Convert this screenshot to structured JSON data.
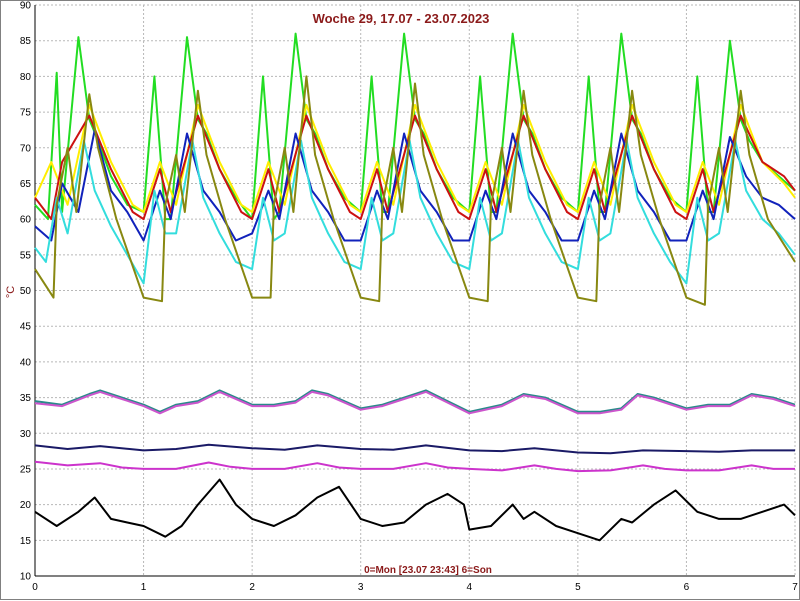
{
  "chart_data": {
    "type": "line",
    "title": "Woche 29, 17.07 - 23.07.2023",
    "xlabel": "0=Mon [23.07 23:43] 6=Son",
    "ylabel": "°C",
    "xlim": [
      0,
      7
    ],
    "ylim": [
      10,
      90
    ],
    "xticks": [
      0,
      1,
      2,
      3,
      4,
      5,
      6,
      7
    ],
    "yticks": [
      10,
      15,
      20,
      25,
      30,
      35,
      40,
      45,
      50,
      55,
      60,
      65,
      70,
      75,
      80,
      85,
      90
    ],
    "grid": true,
    "legend": "none",
    "series": [
      {
        "color": "#22dd22",
        "x": [
          0,
          0.12,
          0.2,
          0.25,
          0.4,
          0.5,
          0.58,
          0.7,
          0.85,
          1.0,
          1.1,
          1.2,
          1.25,
          1.4,
          1.5,
          1.58,
          1.7,
          1.85,
          2.0,
          2.1,
          2.2,
          2.25,
          2.4,
          2.5,
          2.58,
          2.7,
          2.85,
          3.0,
          3.1,
          3.2,
          3.25,
          3.4,
          3.5,
          3.58,
          3.7,
          3.85,
          4.0,
          4.1,
          4.2,
          4.25,
          4.4,
          4.5,
          4.58,
          4.7,
          4.85,
          5.0,
          5.1,
          5.2,
          5.25,
          5.4,
          5.5,
          5.58,
          5.7,
          5.85,
          6.0,
          6.1,
          6.2,
          6.25,
          6.4,
          6.5,
          6.58,
          6.7,
          6.85,
          7.0
        ],
        "y": [
          62,
          60,
          80.5,
          61,
          85.5,
          74,
          71,
          66,
          62,
          61,
          80,
          60,
          60,
          85.5,
          74,
          72,
          67,
          63,
          60,
          80,
          60,
          61,
          86,
          74,
          72,
          67,
          63,
          61,
          80,
          61,
          61,
          86,
          74,
          72,
          67,
          63,
          61,
          80,
          61,
          61,
          86,
          74,
          72,
          67,
          63,
          61,
          80,
          61,
          61,
          86,
          74,
          72,
          67,
          63,
          61,
          80,
          61,
          61,
          85,
          74,
          71,
          68,
          66,
          64
        ]
      },
      {
        "color": "#ffee00",
        "x": [
          0,
          0.15,
          0.3,
          0.5,
          0.7,
          0.9,
          1.0,
          1.15,
          1.3,
          1.5,
          1.7,
          1.9,
          2.0,
          2.15,
          2.3,
          2.5,
          2.7,
          2.9,
          3.0,
          3.15,
          3.3,
          3.5,
          3.7,
          3.9,
          4.0,
          4.15,
          4.3,
          4.5,
          4.7,
          4.9,
          5.0,
          5.15,
          5.3,
          5.5,
          5.7,
          5.9,
          6.0,
          6.15,
          6.3,
          6.5,
          6.7,
          6.9,
          7.0
        ],
        "y": [
          63,
          68,
          62,
          76,
          68,
          62,
          61,
          68,
          62,
          76,
          68,
          62,
          61,
          68,
          62,
          76,
          68,
          62,
          61,
          68,
          62,
          76,
          68,
          62,
          61,
          68,
          62,
          76,
          68,
          62,
          61,
          68,
          62,
          76,
          68,
          62,
          61,
          68,
          62,
          76,
          68,
          65,
          63
        ]
      },
      {
        "color": "#cc1111",
        "x": [
          0,
          0.15,
          0.25,
          0.5,
          0.7,
          0.9,
          1.0,
          1.15,
          1.25,
          1.5,
          1.7,
          1.9,
          2.0,
          2.15,
          2.25,
          2.5,
          2.7,
          2.9,
          3.0,
          3.15,
          3.25,
          3.5,
          3.7,
          3.9,
          4.0,
          4.15,
          4.25,
          4.5,
          4.7,
          4.9,
          5.0,
          5.15,
          5.25,
          5.5,
          5.7,
          5.9,
          6.0,
          6.15,
          6.25,
          6.5,
          6.7,
          6.9,
          7.0
        ],
        "y": [
          63,
          60,
          68,
          74.5,
          67,
          61,
          60,
          67,
          61,
          74.5,
          67,
          61,
          60,
          67,
          61,
          74.5,
          67,
          61,
          60,
          67,
          61,
          74.5,
          67,
          61,
          60,
          67,
          61,
          74.5,
          67,
          61,
          60,
          67,
          61,
          74.5,
          67,
          61,
          60,
          67,
          61,
          74.5,
          68,
          66,
          64
        ]
      },
      {
        "color": "#1122bb",
        "x": [
          0,
          0.15,
          0.25,
          0.4,
          0.55,
          0.7,
          0.85,
          1.0,
          1.15,
          1.25,
          1.4,
          1.55,
          1.7,
          1.85,
          2.0,
          2.15,
          2.25,
          2.4,
          2.55,
          2.7,
          2.85,
          3.0,
          3.15,
          3.25,
          3.4,
          3.55,
          3.7,
          3.85,
          4.0,
          4.15,
          4.25,
          4.4,
          4.55,
          4.7,
          4.85,
          5.0,
          5.15,
          5.25,
          5.4,
          5.55,
          5.7,
          5.85,
          6.0,
          6.15,
          6.25,
          6.4,
          6.55,
          6.7,
          6.85,
          7.0
        ],
        "y": [
          59,
          57,
          65,
          61,
          72.5,
          64,
          61,
          57,
          64,
          60,
          72,
          64,
          61,
          57,
          58,
          64,
          60,
          72,
          64,
          61,
          57,
          57,
          64,
          60,
          72,
          64,
          61,
          57,
          57,
          64,
          60,
          72,
          64,
          61,
          57,
          57,
          64,
          60,
          72,
          64,
          61,
          57,
          57,
          64,
          60,
          71.5,
          66,
          63,
          62,
          60
        ]
      },
      {
        "color": "#33dddd",
        "x": [
          0,
          0.1,
          0.2,
          0.3,
          0.45,
          0.55,
          0.7,
          0.85,
          1.0,
          1.1,
          1.2,
          1.3,
          1.45,
          1.55,
          1.7,
          1.85,
          2.0,
          2.1,
          2.2,
          2.3,
          2.45,
          2.55,
          2.7,
          2.85,
          3.0,
          3.1,
          3.2,
          3.3,
          3.45,
          3.55,
          3.7,
          3.85,
          4.0,
          4.1,
          4.2,
          4.3,
          4.45,
          4.55,
          4.7,
          4.85,
          5.0,
          5.1,
          5.2,
          5.3,
          5.45,
          5.55,
          5.7,
          5.85,
          6.0,
          6.1,
          6.2,
          6.3,
          6.45,
          6.55,
          6.7,
          6.85,
          7.0
        ],
        "y": [
          56,
          54,
          63,
          58,
          71,
          64,
          59,
          55,
          51,
          64,
          58,
          58,
          71,
          63,
          58,
          54,
          53,
          63,
          57,
          58,
          71,
          63,
          58,
          54,
          53,
          63,
          57,
          58,
          71,
          63,
          58,
          54,
          53,
          63,
          57,
          58,
          71,
          63,
          58,
          54,
          53,
          63,
          57,
          58,
          71,
          63,
          58,
          54,
          51,
          63,
          57,
          58,
          71,
          64,
          60,
          58,
          55
        ]
      },
      {
        "color": "#888811",
        "x": [
          0,
          0.17,
          0.2,
          0.3,
          0.38,
          0.5,
          0.58,
          0.75,
          1.0,
          1.17,
          1.2,
          1.3,
          1.38,
          1.5,
          1.58,
          1.75,
          2.0,
          2.17,
          2.2,
          2.3,
          2.38,
          2.5,
          2.58,
          2.75,
          3.0,
          3.17,
          3.2,
          3.3,
          3.38,
          3.5,
          3.58,
          3.75,
          4.0,
          4.17,
          4.2,
          4.3,
          4.38,
          4.5,
          4.58,
          4.75,
          5.0,
          5.17,
          5.2,
          5.3,
          5.38,
          5.5,
          5.58,
          5.75,
          6.0,
          6.17,
          6.2,
          6.3,
          6.38,
          6.5,
          6.58,
          6.75,
          7.0
        ],
        "y": [
          53,
          49,
          62,
          70,
          61,
          77.5,
          70,
          60,
          49,
          48.5,
          62,
          69,
          61,
          78,
          69,
          60,
          49,
          49,
          62,
          70,
          61,
          80,
          69,
          60,
          49,
          48.5,
          62,
          70,
          61,
          79,
          69,
          60,
          49,
          48.5,
          62,
          70,
          61,
          78,
          69,
          60,
          49,
          48.5,
          62,
          70,
          61,
          78,
          69,
          60,
          49,
          48,
          62,
          70,
          61,
          78,
          69,
          60,
          54
        ]
      },
      {
        "color": "#2a8a8a",
        "x": [
          0,
          0.25,
          0.5,
          0.6,
          0.8,
          1.0,
          1.15,
          1.3,
          1.5,
          1.7,
          2.0,
          2.2,
          2.4,
          2.55,
          2.7,
          3.0,
          3.2,
          3.4,
          3.6,
          3.8,
          4.0,
          4.3,
          4.5,
          4.7,
          5.0,
          5.2,
          5.4,
          5.55,
          5.7,
          6.0,
          6.2,
          6.4,
          6.6,
          6.8,
          7.0
        ],
        "y": [
          34.5,
          34,
          35.5,
          36,
          35,
          34,
          33,
          34,
          34.5,
          36,
          34,
          34,
          34.5,
          36,
          35.5,
          33.5,
          34,
          35,
          36,
          34.5,
          33,
          34,
          35.5,
          35,
          33,
          33,
          33.5,
          35.5,
          35,
          33.5,
          34,
          34,
          35.5,
          35,
          34
        ]
      },
      {
        "color": "#cc55cc",
        "x": [
          0,
          0.25,
          0.5,
          0.6,
          0.8,
          1.0,
          1.15,
          1.3,
          1.5,
          1.7,
          2.0,
          2.2,
          2.4,
          2.55,
          2.7,
          3.0,
          3.2,
          3.4,
          3.6,
          3.8,
          4.0,
          4.3,
          4.5,
          4.7,
          5.0,
          5.2,
          5.4,
          5.55,
          5.7,
          6.0,
          6.2,
          6.4,
          6.6,
          6.8,
          7.0
        ],
        "y": [
          34.2,
          33.8,
          35.3,
          35.8,
          34.8,
          33.8,
          32.8,
          33.8,
          34.3,
          35.8,
          33.8,
          33.8,
          34.3,
          35.8,
          35.3,
          33.3,
          33.8,
          34.8,
          35.8,
          34.3,
          32.8,
          33.8,
          35.3,
          34.8,
          32.8,
          32.8,
          33.3,
          35.3,
          34.8,
          33.3,
          33.8,
          33.8,
          35.3,
          34.8,
          33.8
        ]
      },
      {
        "color": "#1a1a66",
        "x": [
          0,
          0.3,
          0.6,
          1.0,
          1.3,
          1.6,
          2.0,
          2.3,
          2.6,
          3.0,
          3.3,
          3.6,
          4.0,
          4.3,
          4.6,
          5.0,
          5.3,
          5.6,
          6.0,
          6.3,
          6.6,
          7.0
        ],
        "y": [
          28.3,
          27.8,
          28.2,
          27.6,
          27.8,
          28.4,
          27.9,
          27.7,
          28.3,
          27.8,
          27.7,
          28.3,
          27.6,
          27.5,
          27.9,
          27.3,
          27.2,
          27.6,
          27.5,
          27.4,
          27.6,
          27.6
        ]
      },
      {
        "color": "#cc33cc",
        "x": [
          0,
          0.3,
          0.6,
          0.8,
          1.0,
          1.3,
          1.6,
          1.8,
          2.0,
          2.3,
          2.6,
          2.8,
          3.0,
          3.3,
          3.6,
          3.8,
          4.0,
          4.3,
          4.6,
          4.8,
          5.0,
          5.3,
          5.6,
          5.8,
          6.0,
          6.3,
          6.6,
          6.8,
          7.0
        ],
        "y": [
          26,
          25.5,
          25.8,
          25.2,
          25,
          25,
          25.9,
          25.3,
          25,
          25,
          25.8,
          25.2,
          25,
          25,
          25.8,
          25.2,
          25,
          24.8,
          25.5,
          25,
          24.7,
          24.8,
          25.5,
          25,
          24.8,
          24.8,
          25.5,
          25,
          25
        ]
      },
      {
        "color": "#000000",
        "x": [
          0,
          0.2,
          0.4,
          0.55,
          0.7,
          0.85,
          1.0,
          1.2,
          1.35,
          1.5,
          1.7,
          1.85,
          2.0,
          2.2,
          2.4,
          2.6,
          2.8,
          3.0,
          3.2,
          3.4,
          3.6,
          3.8,
          3.95,
          4.0,
          4.2,
          4.4,
          4.5,
          4.6,
          4.8,
          5.0,
          5.2,
          5.4,
          5.5,
          5.7,
          5.9,
          6.1,
          6.3,
          6.5,
          6.7,
          6.9,
          7.0
        ],
        "y": [
          19,
          17,
          19,
          21,
          18,
          17.5,
          17,
          15.5,
          17,
          20,
          23.5,
          20,
          18,
          17,
          18.5,
          21,
          22.5,
          18,
          17,
          17.5,
          20,
          21.5,
          20,
          16.5,
          17,
          20,
          18,
          19,
          17,
          16,
          15,
          18,
          17.5,
          20,
          22,
          19,
          18,
          18,
          19,
          20,
          18.5
        ]
      }
    ]
  }
}
